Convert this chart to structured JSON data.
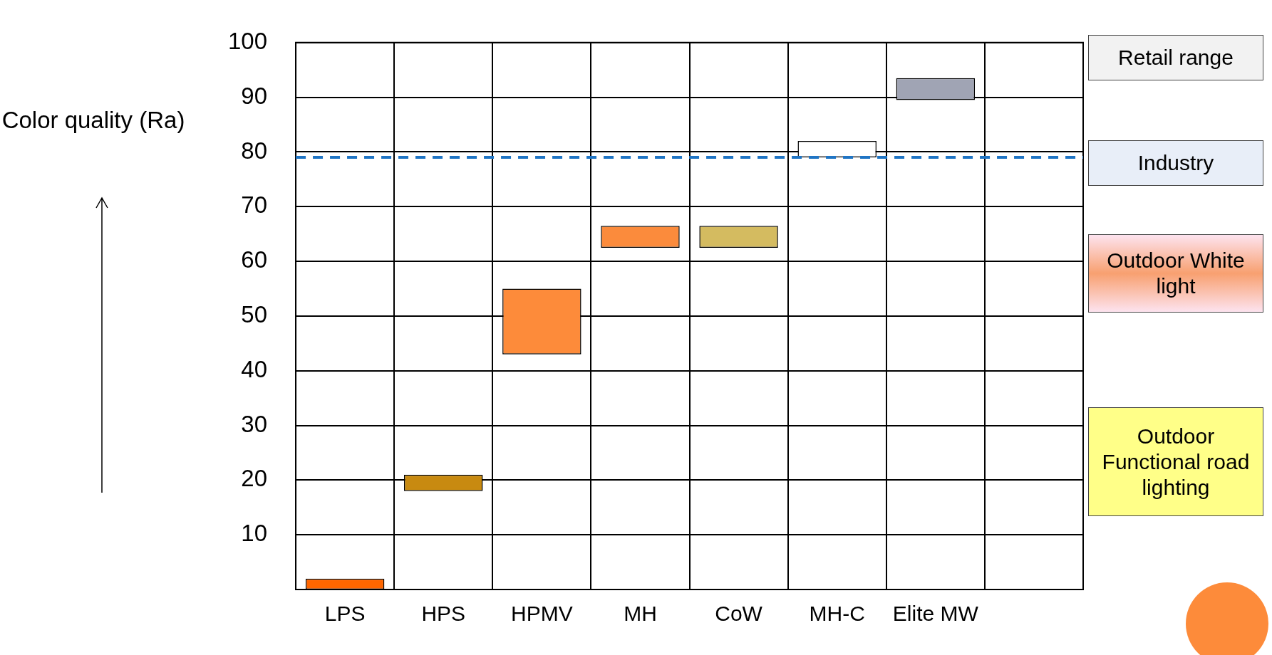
{
  "chart_data": {
    "type": "bar",
    "ylabel": "Color quality (Ra)",
    "categories": [
      "LPS",
      "HPS",
      "HPMV",
      "MH",
      "CoW",
      "MH-C",
      "Elite MW",
      null
    ],
    "values": [
      2,
      3,
      12,
      4,
      4,
      3,
      4,
      null
    ],
    "base": [
      0,
      18,
      43,
      62.5,
      62.5,
      79,
      89.5,
      null
    ],
    "colors": [
      "#ff6600",
      "#c88a10",
      "#fd8b3a",
      "#fb8b3c",
      "#d4bb60",
      "#ffffff",
      "#a0a4b4",
      "#ffffff"
    ],
    "ylim": [
      0,
      100
    ],
    "yticks": [
      10,
      20,
      30,
      40,
      50,
      60,
      70,
      80,
      90,
      100
    ],
    "grid": true,
    "legend": false,
    "ref_lines": [
      {
        "axis": "y",
        "value": 79,
        "color": "#1f74c4",
        "line_style": "dashed"
      }
    ],
    "annotations": [
      "Retail range",
      "Industry",
      "Outdoor White light",
      "Outdoor Functional road lighting"
    ]
  }
}
